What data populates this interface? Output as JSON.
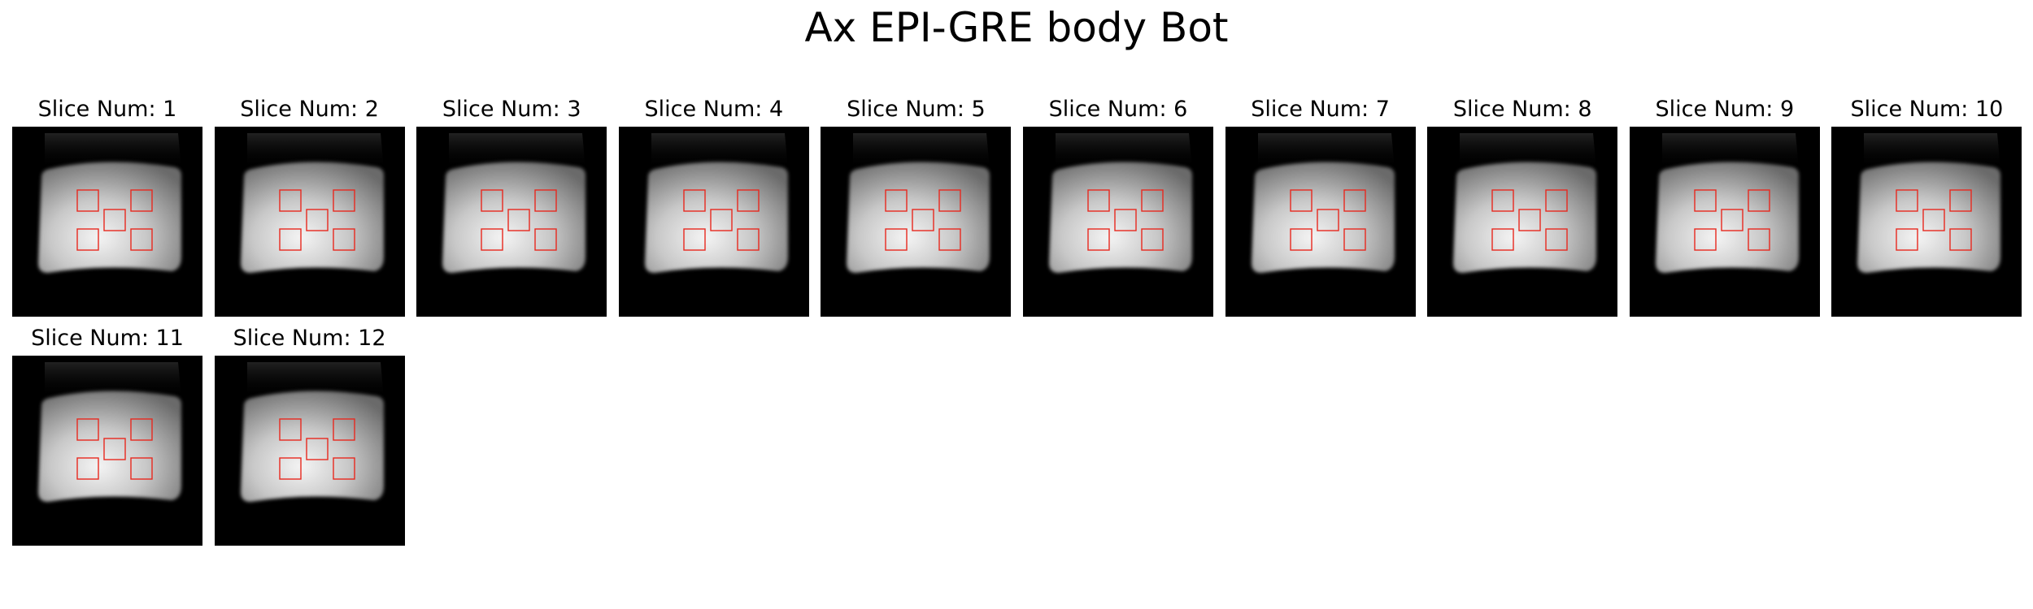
{
  "figure": {
    "title": "Ax EPI-GRE body Bot"
  },
  "colors": {
    "background": "#000000",
    "roi": "#e8281e",
    "phantom_center": "#f4f4f4",
    "phantom_edge": "#6a6a6a"
  },
  "panels": [
    {
      "title": "Slice Num: 1"
    },
    {
      "title": "Slice Num: 2"
    },
    {
      "title": "Slice Num: 3"
    },
    {
      "title": "Slice Num: 4"
    },
    {
      "title": "Slice Num: 5"
    },
    {
      "title": "Slice Num: 6"
    },
    {
      "title": "Slice Num: 7"
    },
    {
      "title": "Slice Num: 8"
    },
    {
      "title": "Slice Num: 9"
    },
    {
      "title": "Slice Num: 10"
    },
    {
      "title": "Slice Num: 11"
    },
    {
      "title": "Slice Num: 12"
    }
  ]
}
